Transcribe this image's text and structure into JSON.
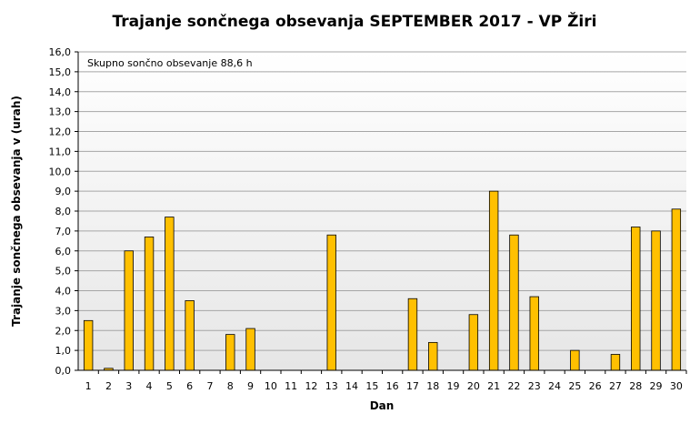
{
  "chart_data": {
    "type": "bar",
    "title": "Trajanje  sončnega  obsevanja  SEPTEMBER  2017 - VP Žiri",
    "xlabel": "Dan",
    "ylabel": "Trajanje  sončnega  obsevanja  v (urah)",
    "annotation": "Skupno sončno obsevanje 88,6 h",
    "ylim": [
      0,
      16
    ],
    "y_step": 1,
    "y_tick_labels": [
      "0,0",
      "1,0",
      "2,0",
      "3,0",
      "4,0",
      "5,0",
      "6,0",
      "7,0",
      "8,0",
      "9,0",
      "10,0",
      "11,0",
      "12,0",
      "13,0",
      "14,0",
      "15,0",
      "16,0"
    ],
    "categories": [
      "1",
      "2",
      "3",
      "4",
      "5",
      "6",
      "7",
      "8",
      "9",
      "10",
      "11",
      "12",
      "13",
      "14",
      "15",
      "16",
      "17",
      "18",
      "19",
      "20",
      "21",
      "22",
      "23",
      "24",
      "25",
      "26",
      "27",
      "28",
      "29",
      "30"
    ],
    "values": [
      2.5,
      0.1,
      6.0,
      6.7,
      7.7,
      3.5,
      0,
      1.8,
      2.1,
      0,
      0,
      0,
      6.8,
      0,
      0,
      0,
      3.6,
      1.4,
      0,
      2.8,
      9.0,
      6.8,
      3.7,
      0,
      1.0,
      0,
      0.8,
      7.2,
      7.0,
      8.1
    ],
    "grid": true,
    "legend": "none",
    "colors": {
      "bar_fill": "#FFC000",
      "bar_stroke": "#000000",
      "plot_bg_top": "#FFFFFF",
      "plot_bg_bottom": "#E6E6E6",
      "gridline": "#A6A6A6"
    }
  }
}
